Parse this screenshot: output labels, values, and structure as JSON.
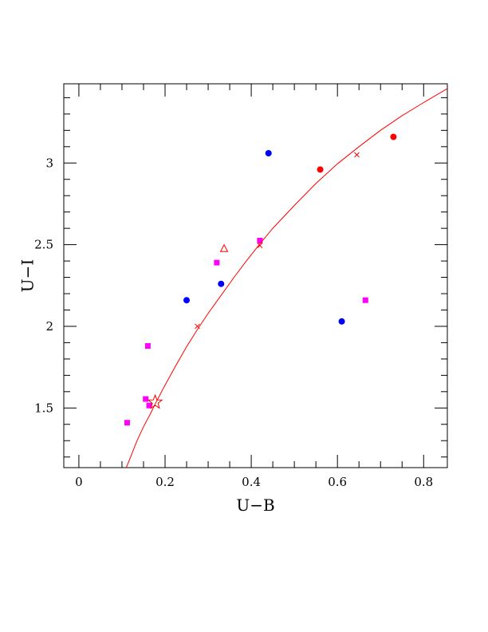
{
  "chart_data": {
    "type": "scatter",
    "xlabel": "U−B",
    "ylabel": "U−I",
    "xlim": [
      -0.035,
      0.855
    ],
    "ylim": [
      1.135,
      3.485
    ],
    "x_ticks": [
      0,
      0.2,
      0.4,
      0.6,
      0.8
    ],
    "x_tick_labels": [
      "0",
      "0.2",
      "0.4",
      "0.6",
      "0.8"
    ],
    "y_ticks": [
      1.5,
      2,
      2.5,
      3
    ],
    "y_tick_labels": [
      "1.5",
      "2",
      "2.5",
      "3"
    ],
    "grid": false,
    "colors": {
      "magenta": "#ff00ff",
      "blue": "#0000ff",
      "red": "#ff0000"
    },
    "series": [
      {
        "marker": "square",
        "color": "#ff00ff",
        "points": [
          [
            0.112,
            1.41
          ],
          [
            0.16,
            1.88
          ],
          [
            0.155,
            1.555
          ],
          [
            0.163,
            1.515
          ],
          [
            0.32,
            2.39
          ],
          [
            0.42,
            2.525
          ],
          [
            0.665,
            2.16
          ]
        ]
      },
      {
        "marker": "circle",
        "color": "#0000ff",
        "points": [
          [
            0.25,
            2.16
          ],
          [
            0.33,
            2.26
          ],
          [
            0.44,
            3.06
          ],
          [
            0.61,
            2.03
          ]
        ]
      },
      {
        "marker": "circle",
        "color": "#ff0000",
        "points": [
          [
            0.56,
            2.96
          ],
          [
            0.73,
            3.16
          ]
        ]
      },
      {
        "marker": "triangle-open",
        "color": "#ff0000",
        "points": [
          [
            0.337,
            2.475
          ]
        ]
      },
      {
        "marker": "star-open",
        "color": "#ff0000",
        "points": [
          [
            0.177,
            1.535
          ]
        ]
      },
      {
        "marker": "cross",
        "color": "#ff0000",
        "points": [
          [
            0.275,
            2.0
          ],
          [
            0.42,
            2.495
          ],
          [
            0.645,
            3.05
          ]
        ]
      },
      {
        "marker": "curve",
        "color": "#ff0000",
        "points": [
          [
            0.11,
            1.135
          ],
          [
            0.12,
            1.2
          ],
          [
            0.135,
            1.3
          ],
          [
            0.15,
            1.385
          ],
          [
            0.165,
            1.46
          ],
          [
            0.177,
            1.525
          ],
          [
            0.2,
            1.64
          ],
          [
            0.225,
            1.76
          ],
          [
            0.25,
            1.875
          ],
          [
            0.275,
            1.98
          ],
          [
            0.3,
            2.08
          ],
          [
            0.33,
            2.19
          ],
          [
            0.36,
            2.3
          ],
          [
            0.39,
            2.405
          ],
          [
            0.42,
            2.505
          ],
          [
            0.45,
            2.6
          ],
          [
            0.5,
            2.74
          ],
          [
            0.55,
            2.875
          ],
          [
            0.6,
            2.995
          ],
          [
            0.65,
            3.1
          ],
          [
            0.7,
            3.2
          ],
          [
            0.75,
            3.29
          ],
          [
            0.8,
            3.37
          ],
          [
            0.855,
            3.455
          ]
        ]
      }
    ]
  }
}
